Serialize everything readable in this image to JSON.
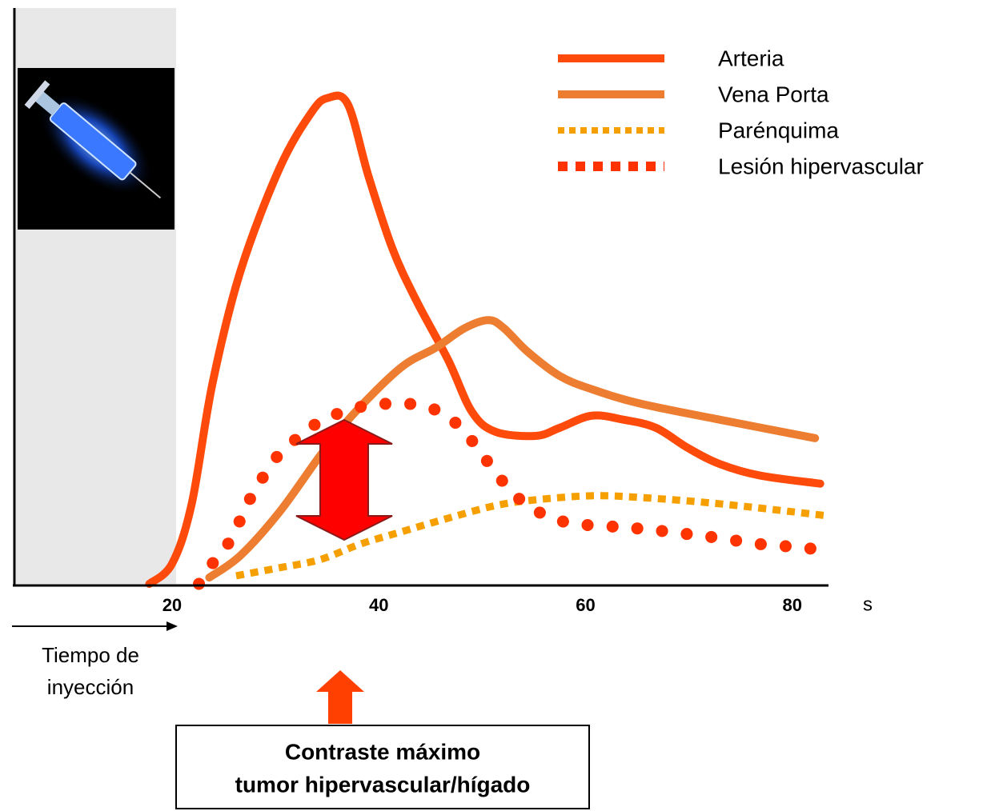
{
  "chart_data": {
    "type": "line",
    "x_label": "s",
    "xlim": [
      4.75,
      83.5
    ],
    "ylim": [
      0,
      100
    ],
    "xticks": [
      20,
      40,
      60,
      80
    ],
    "series": [
      {
        "name": "Arteria",
        "color": "#fe4a0a",
        "line_style": "solid",
        "x": [
          17.8,
          20,
          21.9,
          23.9,
          26.6,
          30.4,
          33.5,
          35.1,
          37.0,
          39.0,
          41.3,
          43.6,
          46.7,
          49.0,
          51.3,
          55.2,
          57.5,
          60.6,
          63.7,
          66.8,
          69.9,
          73.0,
          76.9,
          82.7
        ],
        "values": [
          0,
          3.5,
          13.9,
          34.7,
          54.2,
          72.2,
          81.9,
          84.4,
          83.3,
          70.8,
          58.3,
          49.3,
          38.9,
          29.9,
          26.4,
          25.7,
          27.1,
          29.2,
          28.5,
          27.1,
          23.6,
          20.8,
          18.8,
          17.4
        ]
      },
      {
        "name": "Vena Porta",
        "color": "#ed7d31",
        "line_style": "solid",
        "x": [
          23.6,
          26.6,
          30.4,
          34.3,
          37.4,
          42.1,
          45.5,
          48.3,
          50.6,
          52.1,
          54.4,
          57.5,
          60.6,
          65.3,
          73.0,
          82.2
        ],
        "values": [
          1.1,
          4.9,
          12.5,
          22.2,
          29.2,
          37.5,
          41.0,
          44.4,
          45.8,
          44.4,
          40.3,
          36.1,
          33.8,
          31.3,
          28.5,
          25.3
        ]
      },
      {
        "name": "Parénquima",
        "color": "#f5a000",
        "line_style": "dashed",
        "x": [
          26.2,
          30.4,
          34.3,
          38.2,
          42.1,
          46.7,
          51.3,
          55.2,
          60.6,
          65.3,
          73.0,
          83.5
        ],
        "values": [
          1.4,
          2.8,
          4.2,
          6.9,
          9.0,
          11.4,
          13.6,
          14.6,
          15.3,
          15.0,
          13.9,
          11.8
        ]
      },
      {
        "name": "Lesión hipervascular",
        "color": "#ff3300",
        "line_style": "dotted",
        "x": [
          22.6,
          23.9,
          25.4,
          26.6,
          27.7,
          28.9,
          30.4,
          32.4,
          34.3,
          36.6,
          39.0,
          41.7,
          44.0,
          46.3,
          48.3,
          49.8,
          51.0,
          52.5,
          54.4,
          56.8,
          59.1,
          62.2,
          64.5,
          66.8,
          69.1,
          71.5,
          74.2,
          76.9,
          79.6,
          81.9
        ],
        "values": [
          0,
          3.5,
          6.9,
          11.1,
          15.3,
          18.8,
          22.6,
          25.7,
          28.2,
          29.9,
          31.0,
          31.3,
          31.0,
          29.5,
          26.4,
          22.9,
          20.1,
          16.7,
          13.6,
          11.4,
          10.4,
          10.0,
          9.7,
          9.3,
          8.8,
          8.3,
          7.6,
          6.9,
          6.5,
          6.1
        ]
      }
    ],
    "annotations": {
      "injection": [
        "Tiempo de",
        "inyección"
      ],
      "box": [
        "Contraste máximo",
        "tumor hipervascular/hígado"
      ]
    }
  }
}
